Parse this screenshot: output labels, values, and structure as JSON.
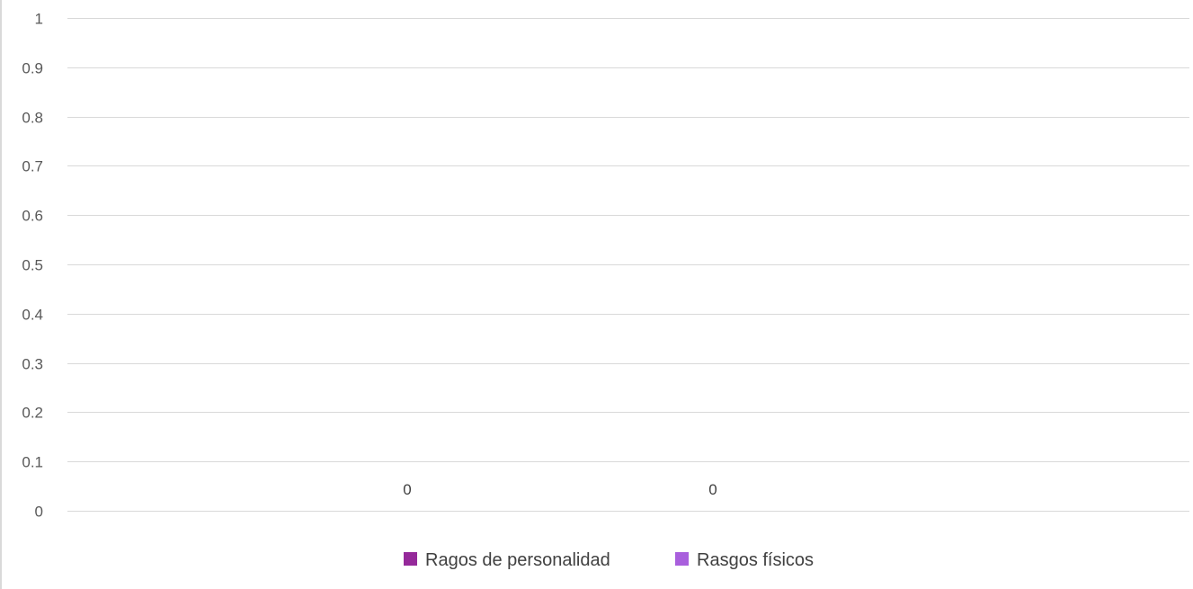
{
  "chart_data": {
    "type": "bar",
    "categories": [
      ""
    ],
    "series": [
      {
        "name": "Ragos de personalidad",
        "values": [
          0
        ],
        "color": "#95299a"
      },
      {
        "name": "Rasgos físicos",
        "values": [
          0
        ],
        "color": "#a95fdd"
      }
    ],
    "data_labels": [
      "0",
      "0"
    ],
    "ylim": [
      0,
      1
    ],
    "yticks": [
      0,
      0.1,
      0.2,
      0.3,
      0.4,
      0.5,
      0.6,
      0.7,
      0.8,
      0.9,
      1
    ],
    "ytick_labels": [
      "0",
      "0.1",
      "0.2",
      "0.3",
      "0.4",
      "0.5",
      "0.6",
      "0.7",
      "0.8",
      "0.9",
      "1"
    ],
    "title": "",
    "xlabel": "",
    "ylabel": "",
    "grid": true,
    "legend_position": "bottom"
  }
}
